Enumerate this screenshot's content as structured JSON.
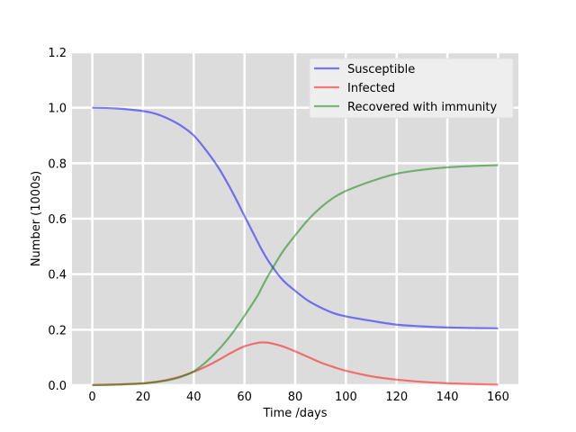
{
  "chart_data": {
    "type": "line",
    "title": "",
    "xlabel": "Time /days",
    "ylabel": "Number (1000s)",
    "xlim": [
      -8,
      168
    ],
    "ylim": [
      0,
      1.2
    ],
    "xticks": [
      "0",
      "20",
      "40",
      "60",
      "80",
      "100",
      "120",
      "140",
      "160"
    ],
    "yticks": [
      "0.0",
      "0.2",
      "0.4",
      "0.6",
      "0.8",
      "1.0",
      "1.2"
    ],
    "grid": true,
    "legend_position": "top-right",
    "x": [
      0,
      10,
      20,
      25,
      30,
      35,
      40,
      45,
      50,
      55,
      60,
      65,
      67,
      70,
      75,
      80,
      85,
      90,
      95,
      100,
      110,
      120,
      130,
      140,
      150,
      160
    ],
    "series": [
      {
        "name": "Susceptible",
        "color": "#0000ff",
        "values": [
          1.0,
          0.997,
          0.988,
          0.978,
          0.96,
          0.935,
          0.9,
          0.845,
          0.78,
          0.7,
          0.61,
          0.52,
          0.485,
          0.44,
          0.38,
          0.34,
          0.305,
          0.28,
          0.26,
          0.248,
          0.232,
          0.218,
          0.212,
          0.208,
          0.206,
          0.205
        ]
      },
      {
        "name": "Infected",
        "color": "#ff0000",
        "values": [
          0.001,
          0.003,
          0.007,
          0.012,
          0.02,
          0.032,
          0.048,
          0.068,
          0.092,
          0.118,
          0.14,
          0.152,
          0.154,
          0.152,
          0.14,
          0.122,
          0.102,
          0.082,
          0.066,
          0.052,
          0.032,
          0.02,
          0.012,
          0.007,
          0.004,
          0.002
        ]
      },
      {
        "name": "Recovered with immunity",
        "color": "#008000",
        "values": [
          0.0,
          0.002,
          0.006,
          0.011,
          0.018,
          0.03,
          0.05,
          0.085,
          0.13,
          0.185,
          0.25,
          0.32,
          0.355,
          0.405,
          0.48,
          0.54,
          0.595,
          0.64,
          0.675,
          0.7,
          0.735,
          0.762,
          0.776,
          0.785,
          0.79,
          0.793
        ]
      }
    ]
  }
}
